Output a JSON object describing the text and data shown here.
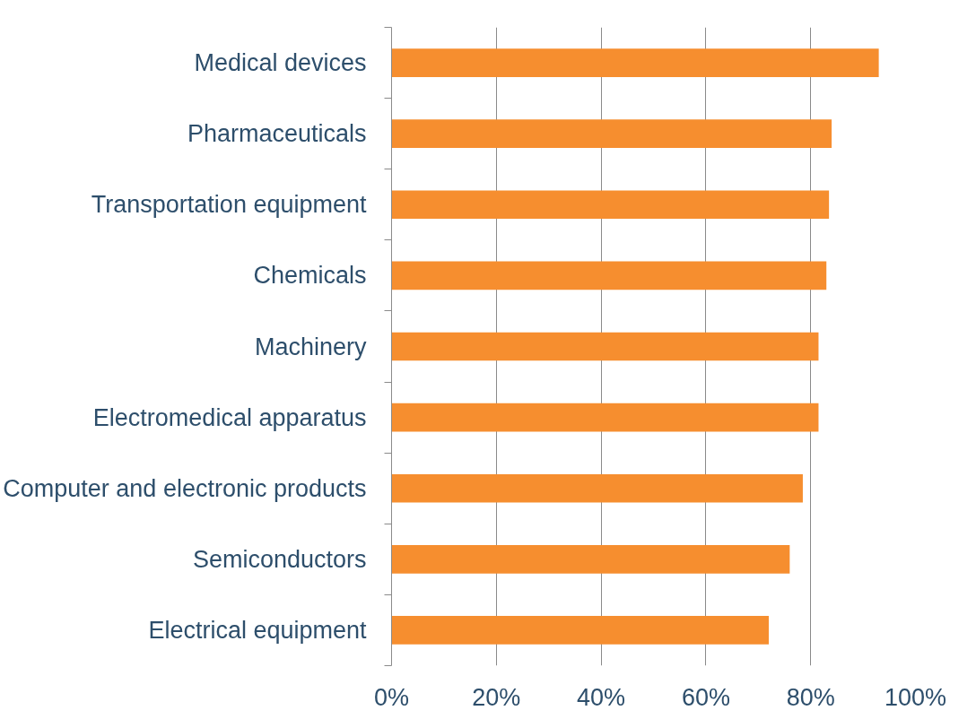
{
  "chart_data": {
    "type": "bar",
    "orientation": "horizontal",
    "categories": [
      "Medical devices",
      "Pharmaceuticals",
      "Transportation equipment",
      "Chemicals",
      "Machinery",
      "Electromedical apparatus",
      "Computer and electronic products",
      "Semiconductors",
      "Electrical equipment"
    ],
    "values": [
      93,
      84,
      83.5,
      83,
      81.5,
      81.5,
      78.5,
      76,
      72
    ],
    "color": "#f68e2f",
    "xlim": [
      0,
      100
    ],
    "xticks": [
      {
        "value": 0,
        "label": "0%"
      },
      {
        "value": 20,
        "label": "20%"
      },
      {
        "value": 40,
        "label": "40%"
      },
      {
        "value": 60,
        "label": "60%"
      },
      {
        "value": 80,
        "label": "80%"
      },
      {
        "value": 100,
        "label": "100%"
      }
    ],
    "grid": "x"
  }
}
